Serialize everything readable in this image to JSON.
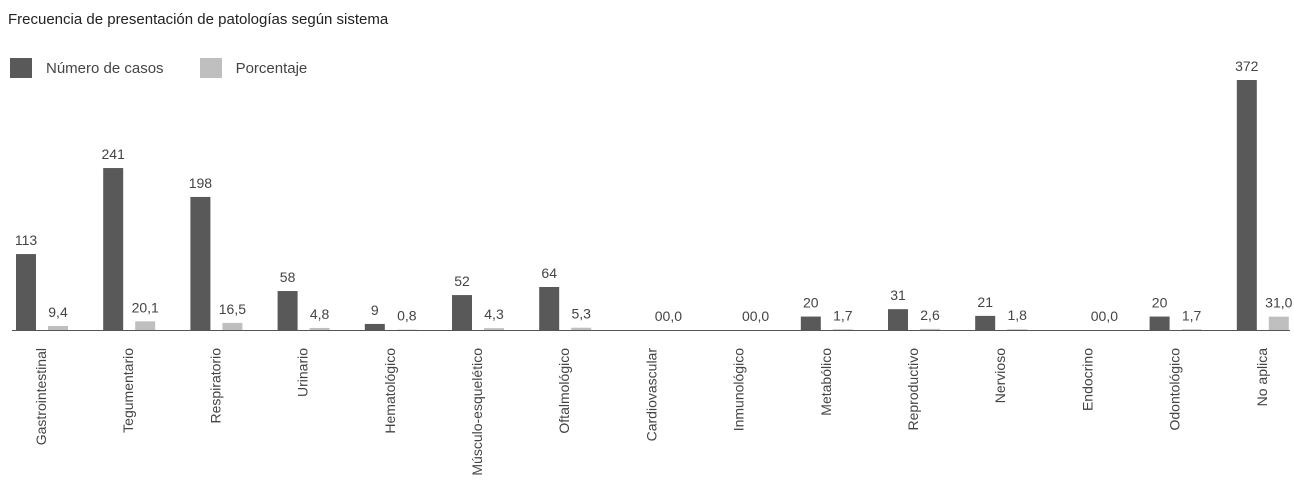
{
  "chart_data": {
    "type": "bar",
    "title": "Frecuencia de presentación de patologías según sistema",
    "categories": [
      "Gastrointestinal",
      "Tegumentario",
      "Respiratorio",
      "Urinario",
      "Hematológico",
      "Músculo-esquelético",
      "Oftalmológico",
      "Cardiovascular",
      "Inmunológico",
      "Metabólico",
      "Reproductivo",
      "Nervioso",
      "Endocrino",
      "Odontológico",
      "No aplica"
    ],
    "series": [
      {
        "name": "Número de casos",
        "color": "#595959",
        "values": [
          113,
          241,
          198,
          58,
          9,
          52,
          64,
          0,
          0,
          20,
          31,
          21,
          0,
          20,
          372
        ],
        "labels": [
          "113",
          "241",
          "198",
          "58",
          "9",
          "52",
          "64",
          "0",
          "0",
          "20",
          "31",
          "21",
          "0",
          "20",
          "372"
        ]
      },
      {
        "name": "Porcentaje",
        "color": "#bfbfbf",
        "values": [
          9.4,
          20.1,
          16.5,
          4.8,
          0.8,
          4.3,
          5.3,
          0.0,
          0.0,
          1.7,
          2.6,
          1.8,
          0.0,
          1.7,
          31.0
        ],
        "labels": [
          "9,4",
          "20,1",
          "16,5",
          "4,8",
          "0,8",
          "4,3",
          "5,3",
          "0,0",
          "0,0",
          "1,7",
          "2,6",
          "1,8",
          "0,0",
          "1,7",
          "31,0"
        ]
      }
    ],
    "legend_position": "top-left",
    "grid": false,
    "xlabel": "",
    "ylabel": ""
  }
}
